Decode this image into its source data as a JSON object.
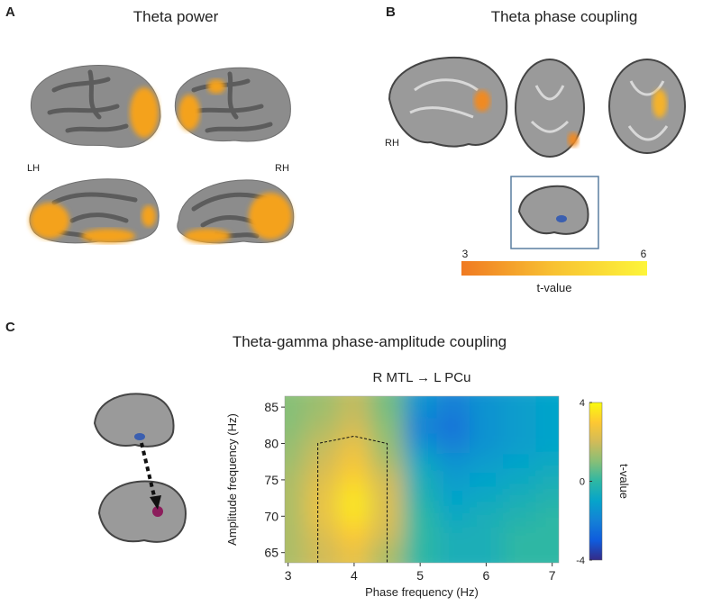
{
  "panels": [
    {
      "letter": "A",
      "title": "Theta power",
      "labels": [
        "LH",
        "RH"
      ]
    },
    {
      "letter": "B",
      "title": "Theta phase coupling",
      "labels": [
        "RH"
      ],
      "colorbar": {
        "lim": [
          3,
          6
        ],
        "ticks": [
          3,
          6
        ],
        "label": "t-value",
        "colors": [
          "#f07a22",
          "#f8c232",
          "#fdf53a"
        ]
      }
    },
    {
      "letter": "C",
      "title": "Theta-gamma phase-amplitude coupling"
    }
  ],
  "chart_data": {
    "type": "heatmap",
    "title": "R MTL → L PCu",
    "x_label": "Phase frequency (Hz)",
    "y_label": "Amplitude frequency (Hz)",
    "x": [
      3,
      3.5,
      4,
      4.5,
      5,
      5.5,
      6,
      6.5,
      7
    ],
    "y": [
      65,
      67.5,
      70,
      72.5,
      75,
      77.5,
      80,
      82.5,
      85
    ],
    "values": [
      [
        1.5,
        2,
        2.5,
        1.5,
        0,
        -0.5,
        -0.5,
        0,
        0
      ],
      [
        1.5,
        2.2,
        3,
        2,
        0,
        -0.5,
        -0.5,
        0,
        0
      ],
      [
        1.5,
        2.5,
        3.5,
        2.2,
        0,
        -0.8,
        -0.5,
        -0.3,
        0
      ],
      [
        1.5,
        2.5,
        3.6,
        2.2,
        -0.3,
        -1,
        -0.8,
        -0.5,
        -0.3
      ],
      [
        1.5,
        2.3,
        3.2,
        2,
        -0.5,
        -1.2,
        -1,
        -0.8,
        -0.5
      ],
      [
        1.3,
        2,
        2.8,
        1.5,
        -0.8,
        -1.5,
        -1.2,
        -1,
        -0.8
      ],
      [
        1.2,
        1.8,
        2.5,
        1.2,
        -1.5,
        -2,
        -1.5,
        -1.2,
        -1
      ],
      [
        1,
        1.5,
        2,
        1,
        -2,
        -2.5,
        -1.5,
        -1.2,
        -1
      ],
      [
        1,
        1.3,
        1.8,
        0.8,
        -1.5,
        -2,
        -1.5,
        -1.2,
        -1
      ]
    ],
    "xlim": [
      2.95,
      7.1
    ],
    "ylim": [
      63.6,
      86.5
    ],
    "xticks": [
      3,
      4,
      5,
      6,
      7
    ],
    "yticks": [
      65,
      70,
      75,
      80,
      85
    ],
    "clim": [
      -4,
      4
    ],
    "cticks": [
      -4,
      0,
      4
    ],
    "colorbar_label": "t-value",
    "colormap": [
      "#352a87",
      "#0f5cdd",
      "#1481d6",
      "#06a4ca",
      "#2eb7a4",
      "#87bf77",
      "#d1bb59",
      "#fec832",
      "#f9fb0e"
    ],
    "roi": {
      "x": [
        3.45,
        3.45,
        4,
        4.5,
        4.5
      ],
      "y": [
        63.6,
        80,
        81,
        80,
        63.6
      ]
    }
  }
}
